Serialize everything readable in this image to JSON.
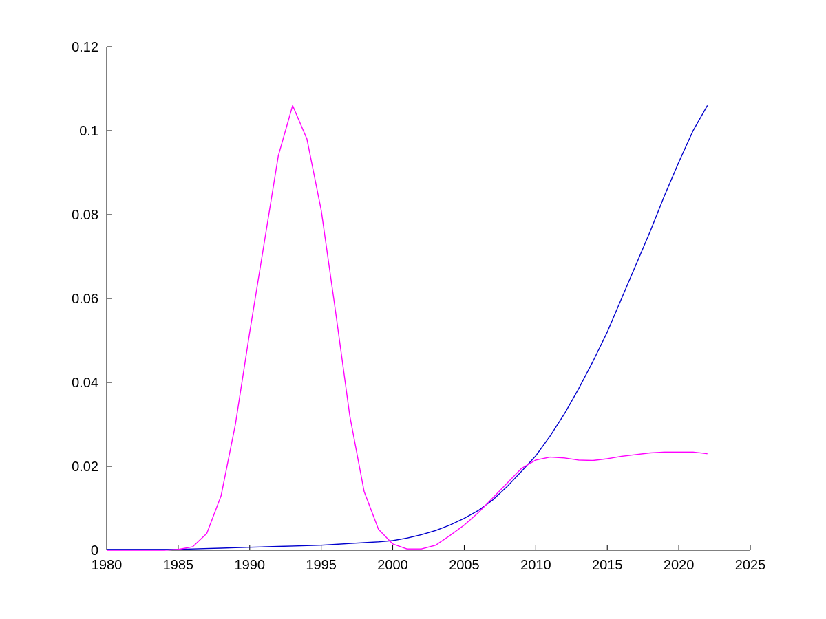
{
  "figure": {
    "background": "#ffffff",
    "axis_color": "#000000",
    "tick_label_color": "#000000"
  },
  "chart_data": {
    "type": "line",
    "title": "",
    "xlabel": "",
    "ylabel": "",
    "grid": false,
    "legend": null,
    "xlim": [
      1980,
      2025
    ],
    "ylim": [
      0,
      0.12
    ],
    "x_ticks": {
      "values": [
        1980,
        1985,
        1990,
        1995,
        2000,
        2005,
        2010,
        2015,
        2020,
        2025
      ],
      "labels": [
        "1980",
        "1985",
        "1990",
        "1995",
        "2000",
        "2005",
        "2010",
        "2015",
        "2020",
        "2025"
      ]
    },
    "y_ticks": {
      "values": [
        0,
        0.02,
        0.04,
        0.06,
        0.08,
        0.1,
        0.12
      ],
      "labels": [
        "0",
        "0.02",
        "0.04",
        "0.06",
        "0.08",
        "0.1",
        "0.12"
      ]
    },
    "x": [
      1980,
      1981,
      1982,
      1983,
      1984,
      1985,
      1986,
      1987,
      1988,
      1989,
      1990,
      1991,
      1992,
      1993,
      1994,
      1995,
      1996,
      1997,
      1998,
      1999,
      2000,
      2001,
      2002,
      2003,
      2004,
      2005,
      2006,
      2007,
      2008,
      2009,
      2010,
      2011,
      2012,
      2013,
      2014,
      2015,
      2016,
      2017,
      2018,
      2019,
      2020,
      2021,
      2022
    ],
    "series": [
      {
        "name": "blue-line",
        "color": "#0000CC",
        "values": [
          0.0002,
          0.0002,
          0.0002,
          0.0002,
          0.0002,
          0.0002,
          0.0003,
          0.0004,
          0.0005,
          0.0006,
          0.0007,
          0.0008,
          0.0009,
          0.001,
          0.0011,
          0.0012,
          0.0014,
          0.0016,
          0.0018,
          0.002,
          0.0023,
          0.0029,
          0.0037,
          0.0047,
          0.006,
          0.0076,
          0.0095,
          0.012,
          0.0152,
          0.0188,
          0.0225,
          0.0272,
          0.0325,
          0.0385,
          0.045,
          0.052,
          0.06,
          0.068,
          0.076,
          0.0845,
          0.0925,
          0.1,
          0.106
        ]
      },
      {
        "name": "magenta-line",
        "color": "#FF00FF",
        "values": [
          0,
          0,
          0,
          0,
          0,
          0.0002,
          0.0008,
          0.004,
          0.013,
          0.03,
          0.052,
          0.073,
          0.094,
          0.106,
          0.098,
          0.081,
          0.057,
          0.032,
          0.014,
          0.005,
          0.0015,
          0.0003,
          0.0003,
          0.0012,
          0.0035,
          0.006,
          0.009,
          0.0125,
          0.016,
          0.0195,
          0.0215,
          0.0222,
          0.022,
          0.0215,
          0.0214,
          0.0218,
          0.0224,
          0.0228,
          0.0232,
          0.0234,
          0.0234,
          0.0234,
          0.023
        ]
      }
    ]
  }
}
